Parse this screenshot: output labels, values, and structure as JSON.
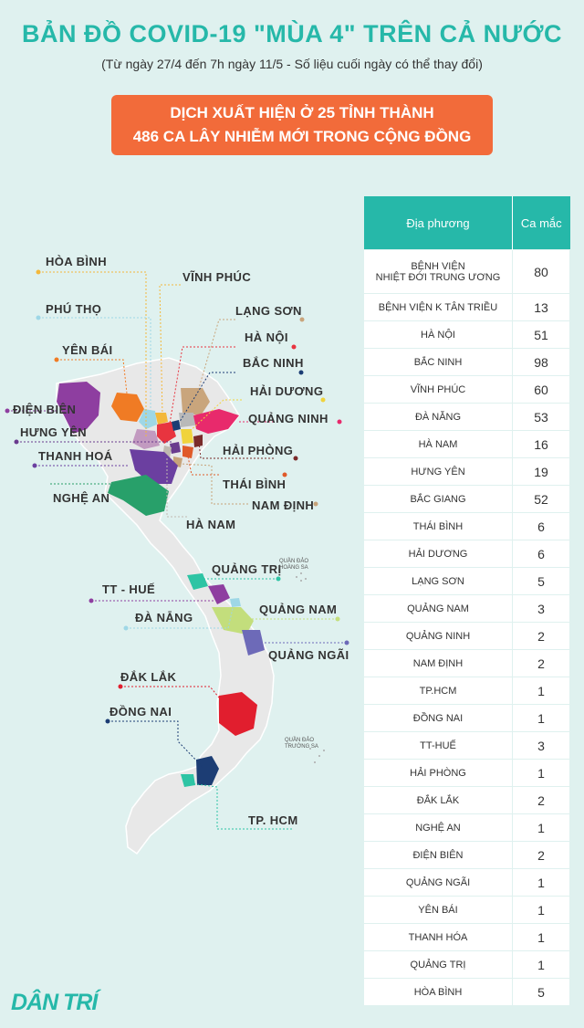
{
  "header": {
    "title": "BẢN ĐỒ COVID-19 \"MÙA 4\" TRÊN CẢ NƯỚC",
    "subtitle": "(Từ ngày 27/4 đến 7h ngày 11/5 - Số liệu cuối ngày có thể thay đổi)"
  },
  "banner": {
    "line1": "DỊCH XUẤT HIỆN Ở 25 TỈNH THÀNH",
    "line2": "486 CA LÂY NHIỄM MỚI TRONG CỘNG ĐỒNG"
  },
  "map": {
    "labels": {
      "hoa_binh": "HÒA BÌNH",
      "vinh_phuc": "VĨNH PHÚC",
      "phu_tho": "PHÚ THỌ",
      "lang_son": "LẠNG SƠN",
      "ha_noi": "HÀ NỘI",
      "yen_bai": "YÊN BÁI",
      "bac_ninh": "BẮC NINH",
      "dien_bien": "ĐIỆN BIÊN",
      "hai_duong": "HẢI DƯƠNG",
      "quang_ninh": "QUẢNG NINH",
      "hung_yen": "HƯNG YÊN",
      "hai_phong": "HẢI PHÒNG",
      "thanh_hoa": "THANH HOÁ",
      "thai_binh": "THÁI BÌNH",
      "nghe_an": "NGHỆ AN",
      "nam_dinh": "NAM ĐỊNH",
      "ha_nam": "HÀ NAM",
      "quang_tri": "QUẢNG TRỊ",
      "tt_hue": "TT - HUẾ",
      "quang_nam": "QUẢNG NAM",
      "da_nang": "ĐÀ NẴNG",
      "quang_ngai": "QUẢNG NGÃI",
      "dak_lak": "ĐẮK LẮK",
      "dong_nai": "ĐỒNG NAI",
      "tp_hcm": "TP. HCM"
    },
    "islands": {
      "hoang_sa_1": "QUẦN ĐẢO",
      "hoang_sa_2": "HOÀNG SA",
      "truong_sa_1": "QUẦN ĐẢO",
      "truong_sa_2": "TRƯỜNG SA"
    }
  },
  "table": {
    "headers": [
      "Địa phương",
      "Ca mắc"
    ],
    "rows": [
      {
        "name": "BỆNH VIỆN",
        "name2": "NHIỆT ĐỚI TRUNG ƯƠNG",
        "cases": "80"
      },
      {
        "name": "BỆNH VIỆN K TÂN TRIỀU",
        "cases": "13"
      },
      {
        "name": "HÀ NỘI",
        "cases": "51"
      },
      {
        "name": "BẮC NINH",
        "cases": "98"
      },
      {
        "name": "VĨNH PHÚC",
        "cases": "60"
      },
      {
        "name": "ĐÀ NẴNG",
        "cases": "53"
      },
      {
        "name": "HÀ NAM",
        "cases": "16"
      },
      {
        "name": "HƯNG YÊN",
        "cases": "19"
      },
      {
        "name": "BẮC GIANG",
        "cases": "52"
      },
      {
        "name": "THÁI BÌNH",
        "cases": "6"
      },
      {
        "name": "HẢI DƯƠNG",
        "cases": "6"
      },
      {
        "name": "LẠNG SƠN",
        "cases": "5"
      },
      {
        "name": "QUẢNG NAM",
        "cases": "3"
      },
      {
        "name": "QUẢNG NINH",
        "cases": "2"
      },
      {
        "name": "NAM ĐỊNH",
        "cases": "2"
      },
      {
        "name": "TP.HCM",
        "cases": "1"
      },
      {
        "name": "ĐỒNG NAI",
        "cases": "1"
      },
      {
        "name": "TT-HUẾ",
        "cases": "3"
      },
      {
        "name": "HẢI PHÒNG",
        "cases": "1"
      },
      {
        "name": "ĐẮK LẮK",
        "cases": "2"
      },
      {
        "name": "NGHỆ AN",
        "cases": "1"
      },
      {
        "name": "ĐIỆN BIÊN",
        "cases": "2"
      },
      {
        "name": "QUẢNG NGÃI",
        "cases": "1"
      },
      {
        "name": "YÊN BÁI",
        "cases": "1"
      },
      {
        "name": "THANH HÓA",
        "cases": "1"
      },
      {
        "name": "QUẢNG TRỊ",
        "cases": "1"
      },
      {
        "name": "HÒA BÌNH",
        "cases": "5"
      }
    ]
  },
  "footer": {
    "logo": "DÂN TRÍ"
  },
  "colors": {
    "accent": "#26b8a9",
    "banner": "#f26b3a",
    "background": "#dff1ef"
  }
}
